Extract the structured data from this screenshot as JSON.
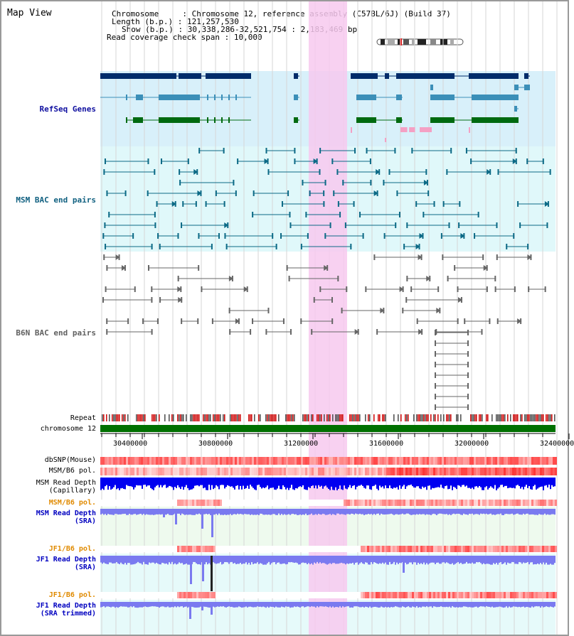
{
  "title": "Map View",
  "info": {
    "chromosome_key": "Chromosome",
    "chromosome_val": "Chromosome 12, reference assembly (C57BL/6J) (Build 37)",
    "length_key": "Length (b.p.)",
    "length_val": "121,257,530",
    "show_key": "Show (b.p.)",
    "show_val": "30,338,286-32,521,754 : 2,183,469 bp",
    "span_key": "Read coverage check span",
    "span_val": "10,000"
  },
  "tracks": {
    "refseq": "RefSeq Genes",
    "msm_bac": "MSM BAC end pairs",
    "b6n_bac": "B6N BAC end pairs",
    "repeat": "Repeat",
    "chromosome": "chromosome 12",
    "dbsnp": "dbSNP(Mouse)",
    "msm_b6_pol": "MSM/B6 pol.",
    "msm_depth_cap_1": "MSM Read Depth",
    "msm_depth_cap_2": "(Capillary)",
    "msm_b6_pol_2": "MSM/B6 pol.",
    "msm_depth_sra_1": "MSM Read Depth",
    "msm_depth_sra_2": "(SRA)",
    "jf1_pol_1": "JF1/B6 pol.",
    "jf1_depth_1": "JF1 Read Depth",
    "jf1_depth_2": "(SRA)",
    "jf1_pol_2": "JF1/B6 pol.",
    "jf1_trim_1": "JF1 Read Depth",
    "jf1_trim_2": "(SRA trimmed)"
  },
  "axis_ticks": [
    "30400000",
    "30800000",
    "31200000",
    "31600000",
    "32000000",
    "32400000"
  ],
  "colors": {
    "refseq_label": "#1010a0",
    "msm_label": "#106080",
    "b6n_label": "#606060",
    "orange_label": "#e08a00",
    "blue_label": "#0000c0",
    "highlight": "#f7c9ee",
    "refseq_bg": "#d8f0fa",
    "msm_bg": "#e0f8fa",
    "chrom_bar": "#007000",
    "depth_blue": "#0000f0",
    "depth_light": "#7a7af0"
  }
}
